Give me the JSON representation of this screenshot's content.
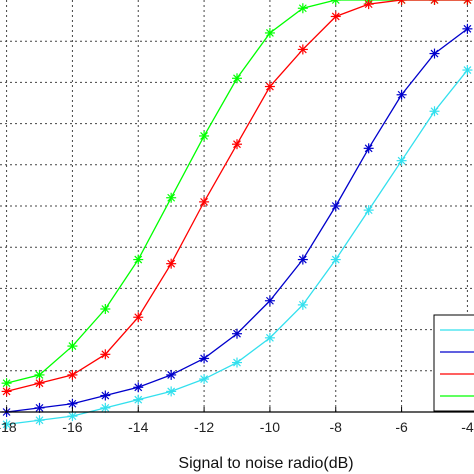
{
  "chart_data": {
    "type": "line",
    "xlabel": "Signal to noise radio(dB)",
    "ylabel": "",
    "title": "",
    "xlim": [
      -18.2,
      -3.8
    ],
    "ylim": [
      0,
      1
    ],
    "x_ticks": [
      "-18",
      "-16",
      "-14",
      "-12",
      "-10",
      "-8",
      "-6",
      "-4"
    ],
    "x_tick_values": [
      -18,
      -16,
      -14,
      -12,
      -10,
      -8,
      -6,
      -4
    ],
    "grid": true,
    "marker": "asterisk",
    "legend_placement": "bottom-right (partially visible, entry text cropped)",
    "x": [
      -18,
      -17,
      -16,
      -15,
      -14,
      -13,
      -12,
      -11,
      -10,
      -9,
      -8,
      -7,
      -6,
      -5,
      -4
    ],
    "series": [
      {
        "color": "#00ff00",
        "values": [
          0.07,
          0.09,
          0.16,
          0.25,
          0.37,
          0.52,
          0.67,
          0.81,
          0.92,
          0.98,
          1.0,
          1.0,
          1.0,
          1.0,
          1.0
        ]
      },
      {
        "color": "#ff0000",
        "values": [
          0.05,
          0.07,
          0.09,
          0.14,
          0.23,
          0.36,
          0.51,
          0.65,
          0.79,
          0.88,
          0.96,
          0.99,
          1.0,
          1.0,
          1.0
        ]
      },
      {
        "color": "#0000cc",
        "values": [
          0.0,
          0.01,
          0.02,
          0.04,
          0.06,
          0.09,
          0.13,
          0.19,
          0.27,
          0.37,
          0.5,
          0.64,
          0.77,
          0.87,
          0.93
        ]
      },
      {
        "color": "#33e0ee",
        "values": [
          -0.03,
          -0.02,
          -0.01,
          0.01,
          0.03,
          0.05,
          0.08,
          0.12,
          0.18,
          0.26,
          0.37,
          0.49,
          0.61,
          0.73,
          0.83
        ]
      }
    ],
    "legend": {
      "entries": [
        {
          "color": "#33e0ee"
        },
        {
          "color": "#0000cc"
        },
        {
          "color": "#ff0000"
        },
        {
          "color": "#00ff00"
        }
      ]
    }
  }
}
